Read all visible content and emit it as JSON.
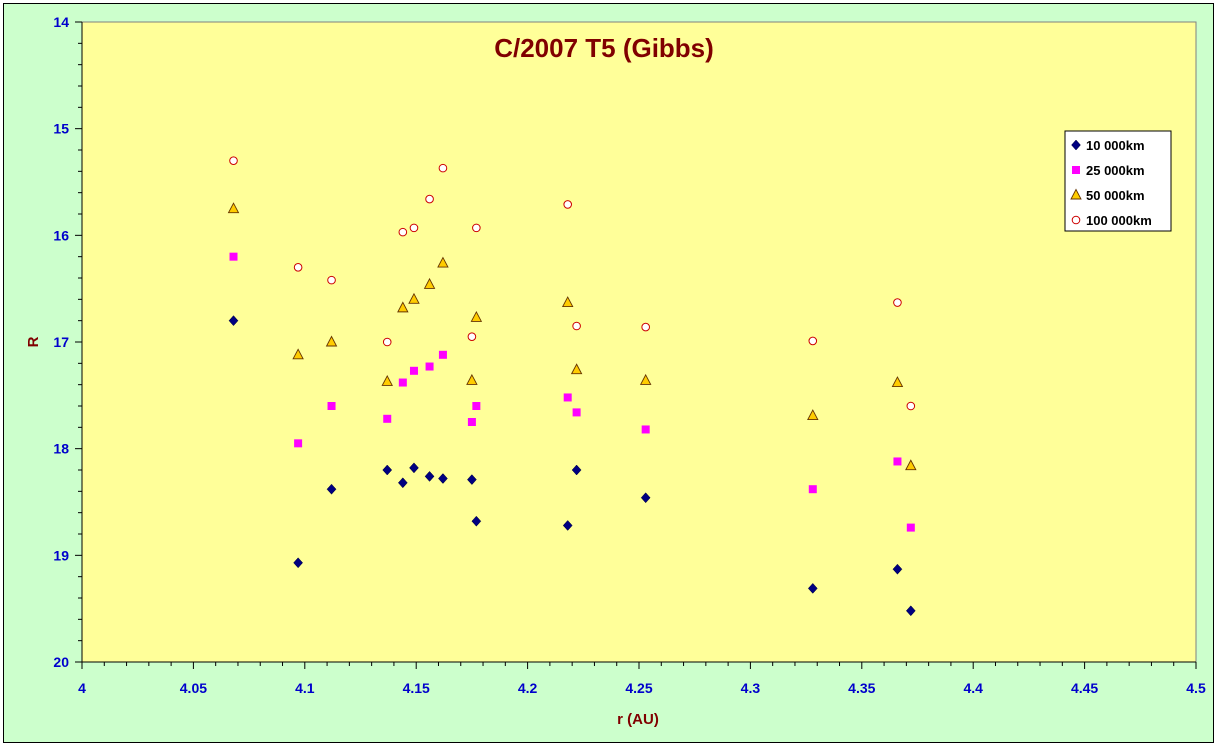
{
  "colors": {
    "frame_bg": "#ccffcc",
    "plot_bg": "#ffff99",
    "tick_label": "#0000cc",
    "title": "#800000"
  },
  "chart_data": {
    "type": "scatter",
    "title": "C/2007 T5 (Gibbs)",
    "xlabel": "r (AU)",
    "ylabel": "R",
    "xlim": [
      4,
      4.5
    ],
    "ylim": [
      14,
      20
    ],
    "y_inverted": true,
    "x_ticks": [
      "4",
      "4.05",
      "4.1",
      "4.15",
      "4.2",
      "4.25",
      "4.3",
      "4.35",
      "4.4",
      "4.45",
      "4.5"
    ],
    "y_ticks": [
      "14",
      "15",
      "16",
      "17",
      "18",
      "19",
      "20"
    ],
    "grid": false,
    "legend_position": "top-right",
    "series": [
      {
        "name": "10 000km",
        "marker": "diamond",
        "color": "#000080",
        "x": [
          4.068,
          4.097,
          4.112,
          4.137,
          4.144,
          4.149,
          4.156,
          4.162,
          4.175,
          4.177,
          4.218,
          4.222,
          4.253,
          4.328,
          4.366,
          4.372
        ],
        "y": [
          16.8,
          19.07,
          18.38,
          18.2,
          18.32,
          18.18,
          18.26,
          18.28,
          18.29,
          18.68,
          18.72,
          18.2,
          18.46,
          19.31,
          19.13,
          19.52
        ]
      },
      {
        "name": "25 000km",
        "marker": "square",
        "color": "#ff00ff",
        "x": [
          4.068,
          4.097,
          4.112,
          4.137,
          4.144,
          4.149,
          4.156,
          4.162,
          4.175,
          4.177,
          4.218,
          4.222,
          4.253,
          4.328,
          4.366,
          4.372
        ],
        "y": [
          16.2,
          17.95,
          17.6,
          17.72,
          17.38,
          17.27,
          17.23,
          17.12,
          17.75,
          17.6,
          17.52,
          17.66,
          17.82,
          18.38,
          18.12,
          18.74
        ]
      },
      {
        "name": "50 000km",
        "marker": "triangle",
        "color": "#ffcc00",
        "x": [
          4.068,
          4.097,
          4.112,
          4.137,
          4.144,
          4.149,
          4.156,
          4.162,
          4.175,
          4.177,
          4.218,
          4.222,
          4.253,
          4.328,
          4.366,
          4.372
        ],
        "y": [
          15.75,
          17.12,
          17.0,
          17.37,
          16.68,
          16.6,
          16.46,
          16.26,
          17.36,
          16.77,
          16.63,
          17.26,
          17.36,
          17.69,
          17.38,
          18.16
        ]
      },
      {
        "name": "100 000km",
        "marker": "circle",
        "color": "#cc0000",
        "x": [
          4.068,
          4.097,
          4.112,
          4.137,
          4.144,
          4.149,
          4.156,
          4.162,
          4.175,
          4.177,
          4.218,
          4.222,
          4.253,
          4.328,
          4.366,
          4.372
        ],
        "y": [
          15.3,
          16.3,
          16.42,
          17.0,
          15.97,
          15.93,
          15.66,
          15.37,
          16.95,
          15.93,
          15.71,
          16.85,
          16.86,
          16.99,
          16.63,
          17.6
        ]
      }
    ]
  }
}
